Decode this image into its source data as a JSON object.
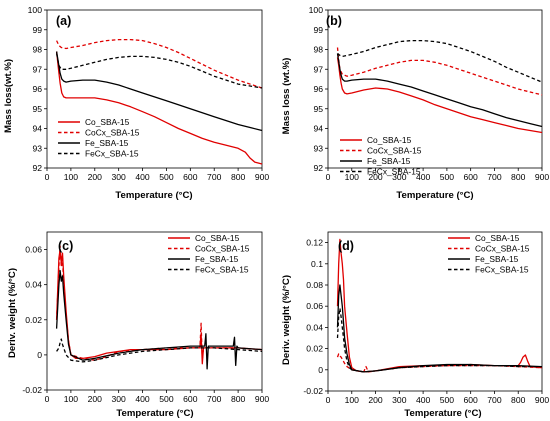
{
  "chart_data": [
    {
      "panel": "(a)",
      "type": "line",
      "xlabel": "Temperature (°C)",
      "ylabel": "Mass loss(wt.%)",
      "xlim": [
        0,
        900
      ],
      "ylim": [
        92,
        100
      ],
      "xticks": [
        0,
        100,
        200,
        300,
        400,
        500,
        600,
        700,
        800,
        900
      ],
      "yticks": [
        92,
        93,
        94,
        95,
        96,
        97,
        98,
        99,
        100
      ],
      "legend": "middle-left",
      "series": [
        {
          "name": "Co_SBA-15",
          "color": "#e00000",
          "dash": "solid",
          "x": [
            40,
            48,
            55,
            62,
            70,
            80,
            100,
            150,
            200,
            250,
            300,
            350,
            400,
            450,
            500,
            550,
            600,
            650,
            700,
            750,
            800,
            830,
            850,
            870,
            900
          ],
          "y": [
            97.9,
            97.0,
            96.3,
            95.8,
            95.6,
            95.55,
            95.55,
            95.55,
            95.55,
            95.45,
            95.3,
            95.1,
            94.85,
            94.6,
            94.3,
            94.0,
            93.75,
            93.5,
            93.3,
            93.15,
            93.0,
            92.8,
            92.5,
            92.3,
            92.2
          ]
        },
        {
          "name": "CoCx_SBA-15",
          "color": "#e00000",
          "dash": "dashed",
          "x": [
            40,
            50,
            60,
            80,
            100,
            150,
            200,
            250,
            300,
            350,
            400,
            450,
            500,
            550,
            600,
            650,
            700,
            750,
            800,
            850,
            900
          ],
          "y": [
            98.45,
            98.2,
            98.1,
            98.05,
            98.1,
            98.2,
            98.35,
            98.45,
            98.5,
            98.5,
            98.45,
            98.3,
            98.1,
            97.85,
            97.55,
            97.25,
            96.95,
            96.7,
            96.45,
            96.25,
            96.05
          ]
        },
        {
          "name": "Fe_SBA-15",
          "color": "#000000",
          "dash": "solid",
          "x": [
            40,
            48,
            55,
            62,
            70,
            80,
            100,
            150,
            200,
            250,
            300,
            350,
            400,
            450,
            500,
            550,
            600,
            650,
            700,
            750,
            800,
            850,
            900
          ],
          "y": [
            97.9,
            97.3,
            96.8,
            96.5,
            96.4,
            96.35,
            96.4,
            96.45,
            96.45,
            96.35,
            96.2,
            96.0,
            95.8,
            95.6,
            95.4,
            95.2,
            95.0,
            94.8,
            94.6,
            94.4,
            94.2,
            94.05,
            93.9
          ]
        },
        {
          "name": "FeCx_SBA-15",
          "color": "#000000",
          "dash": "dashed",
          "x": [
            40,
            50,
            60,
            80,
            100,
            150,
            200,
            250,
            300,
            350,
            400,
            450,
            500,
            550,
            600,
            650,
            700,
            750,
            800,
            850,
            900
          ],
          "y": [
            97.8,
            97.2,
            97.0,
            97.0,
            97.05,
            97.2,
            97.35,
            97.5,
            97.6,
            97.65,
            97.65,
            97.6,
            97.5,
            97.35,
            97.15,
            96.9,
            96.65,
            96.45,
            96.25,
            96.15,
            96.05
          ]
        }
      ]
    },
    {
      "panel": "(b)",
      "type": "line",
      "xlabel": "Temperature (°C)",
      "ylabel": "Mass loss (wt.%)",
      "xlim": [
        0,
        900
      ],
      "ylim": [
        92,
        100
      ],
      "xticks": [
        0,
        100,
        200,
        300,
        400,
        500,
        600,
        700,
        800,
        900
      ],
      "yticks": [
        92,
        93,
        94,
        95,
        96,
        97,
        98,
        99,
        100
      ],
      "legend": "middle-left",
      "series": [
        {
          "name": "Co_SBA-15",
          "color": "#e00000",
          "dash": "solid",
          "x": [
            40,
            45,
            50,
            55,
            60,
            70,
            80,
            100,
            150,
            200,
            250,
            300,
            350,
            400,
            450,
            500,
            550,
            600,
            650,
            700,
            750,
            800,
            850,
            900
          ],
          "y": [
            97.6,
            97.2,
            96.7,
            96.3,
            96.0,
            95.8,
            95.75,
            95.8,
            95.95,
            96.05,
            96.0,
            95.85,
            95.65,
            95.45,
            95.2,
            95.0,
            94.8,
            94.6,
            94.45,
            94.3,
            94.15,
            94.0,
            93.9,
            93.8
          ]
        },
        {
          "name": "CoCx_SBA-15",
          "color": "#e00000",
          "dash": "dashed",
          "x": [
            40,
            45,
            50,
            60,
            80,
            100,
            150,
            200,
            250,
            300,
            350,
            400,
            450,
            500,
            550,
            600,
            650,
            700,
            750,
            800,
            850,
            900
          ],
          "y": [
            98.1,
            97.5,
            97.0,
            96.75,
            96.65,
            96.7,
            96.85,
            97.05,
            97.2,
            97.35,
            97.45,
            97.45,
            97.35,
            97.2,
            97.0,
            96.8,
            96.6,
            96.4,
            96.2,
            96.0,
            95.85,
            95.7
          ]
        },
        {
          "name": "Fe_SBA-15",
          "color": "#000000",
          "dash": "solid",
          "x": [
            40,
            45,
            50,
            55,
            60,
            70,
            80,
            100,
            150,
            200,
            250,
            300,
            350,
            400,
            450,
            500,
            550,
            600,
            650,
            700,
            750,
            800,
            850,
            900
          ],
          "y": [
            97.8,
            97.4,
            97.0,
            96.7,
            96.5,
            96.4,
            96.4,
            96.45,
            96.5,
            96.5,
            96.4,
            96.25,
            96.1,
            95.9,
            95.7,
            95.5,
            95.3,
            95.1,
            94.95,
            94.75,
            94.55,
            94.4,
            94.25,
            94.1
          ]
        },
        {
          "name": "FeCx_SBA-15",
          "color": "#000000",
          "dash": "dashed",
          "x": [
            40,
            50,
            60,
            80,
            100,
            150,
            200,
            250,
            300,
            350,
            400,
            450,
            500,
            550,
            600,
            650,
            700,
            750,
            800,
            850,
            900
          ],
          "y": [
            97.8,
            97.7,
            97.65,
            97.7,
            97.75,
            97.9,
            98.1,
            98.25,
            98.4,
            98.45,
            98.45,
            98.4,
            98.3,
            98.1,
            97.9,
            97.65,
            97.4,
            97.1,
            96.85,
            96.6,
            96.35
          ]
        }
      ]
    },
    {
      "panel": "(c)",
      "type": "line",
      "xlabel": "Temperature (°C)",
      "ylabel": "Deriv. weight (%/°C)",
      "xlim": [
        0,
        900
      ],
      "ylim": [
        -0.02,
        0.07
      ],
      "xticks": [
        0,
        100,
        200,
        300,
        400,
        500,
        600,
        700,
        800,
        900
      ],
      "yticks": [
        -0.02,
        0,
        0.02,
        0.04,
        0.06
      ],
      "legend": "top-right",
      "series": [
        {
          "name": "Co_SBA-15",
          "color": "#e00000",
          "dash": "solid",
          "x": [
            40,
            50,
            55,
            60,
            65,
            70,
            80,
            90,
            100,
            120,
            150,
            200,
            250,
            300,
            350,
            400,
            500,
            600,
            640,
            645,
            650,
            655,
            700,
            800,
            900
          ],
          "y": [
            0.02,
            0.055,
            0.06,
            0.052,
            0.058,
            0.045,
            0.025,
            0.008,
            0.0,
            -0.002,
            -0.002,
            -0.001,
            0.001,
            0.002,
            0.003,
            0.003,
            0.003,
            0.004,
            0.004,
            0.012,
            -0.005,
            0.004,
            0.004,
            0.004,
            0.003
          ]
        },
        {
          "name": "CoCx_SBA-15",
          "color": "#e00000",
          "dash": "dashed",
          "x": [
            40,
            50,
            55,
            60,
            65,
            70,
            80,
            90,
            100,
            150,
            200,
            250,
            300,
            400,
            500,
            600,
            640,
            645,
            650,
            655,
            700,
            800,
            900
          ],
          "y": [
            0.02,
            0.05,
            0.062,
            0.05,
            0.055,
            0.04,
            0.022,
            0.008,
            0.0,
            -0.002,
            -0.003,
            -0.001,
            0.002,
            0.003,
            0.004,
            0.004,
            0.004,
            0.018,
            -0.003,
            0.004,
            0.004,
            0.004,
            0.003
          ]
        },
        {
          "name": "Fe_SBA-15",
          "color": "#000000",
          "dash": "solid",
          "x": [
            40,
            50,
            55,
            60,
            65,
            70,
            80,
            90,
            100,
            150,
            200,
            300,
            400,
            500,
            600,
            660,
            665,
            670,
            675,
            700,
            780,
            785,
            790,
            795,
            800,
            900
          ],
          "y": [
            0.015,
            0.04,
            0.048,
            0.042,
            0.045,
            0.035,
            0.02,
            0.006,
            0.0,
            -0.003,
            -0.002,
            0.001,
            0.003,
            0.004,
            0.005,
            0.005,
            0.012,
            -0.008,
            0.005,
            0.005,
            0.005,
            0.01,
            -0.006,
            0.005,
            0.004,
            0.003
          ]
        },
        {
          "name": "FeCx_SBA-15",
          "color": "#000000",
          "dash": "dashed",
          "x": [
            40,
            50,
            55,
            60,
            65,
            70,
            80,
            100,
            150,
            200,
            300,
            400,
            500,
            600,
            700,
            800,
            900
          ],
          "y": [
            0.002,
            0.004,
            0.007,
            0.009,
            0.006,
            0.004,
            0.0,
            -0.003,
            -0.004,
            -0.003,
            0.0,
            0.002,
            0.003,
            0.004,
            0.004,
            0.003,
            0.002
          ]
        }
      ]
    },
    {
      "panel": "(d)",
      "type": "line",
      "xlabel": "Temperature (°C)",
      "ylabel": "Deriv. weight (%/°C)",
      "xlim": [
        0,
        900
      ],
      "ylim": [
        -0.02,
        0.13
      ],
      "xticks": [
        0,
        100,
        200,
        300,
        400,
        500,
        600,
        700,
        800,
        900
      ],
      "yticks": [
        -0.02,
        0,
        0.02,
        0.04,
        0.06,
        0.08,
        0.1,
        0.12
      ],
      "legend": "top-right",
      "series": [
        {
          "name": "Co_SBA-15",
          "color": "#e00000",
          "dash": "solid",
          "x": [
            40,
            45,
            50,
            55,
            60,
            65,
            70,
            80,
            90,
            100,
            120,
            150,
            200,
            300,
            400,
            500,
            600,
            700,
            800,
            810,
            820,
            830,
            840,
            850,
            900
          ],
          "y": [
            0.06,
            0.1,
            0.123,
            0.11,
            0.1,
            0.085,
            0.06,
            0.035,
            0.012,
            0.002,
            -0.001,
            -0.002,
            -0.001,
            0.003,
            0.004,
            0.004,
            0.005,
            0.004,
            0.004,
            0.007,
            0.012,
            0.014,
            0.008,
            0.003,
            0.002
          ]
        },
        {
          "name": "CoCx_SBA-15",
          "color": "#e00000",
          "dash": "dashed",
          "x": [
            40,
            45,
            50,
            55,
            60,
            70,
            80,
            100,
            150,
            160,
            170,
            200,
            300,
            400,
            500,
            600,
            700,
            800,
            900
          ],
          "y": [
            0.012,
            0.015,
            0.013,
            0.012,
            0.01,
            0.006,
            0.003,
            0.0,
            -0.002,
            0.003,
            -0.002,
            -0.001,
            0.002,
            0.003,
            0.004,
            0.004,
            0.004,
            0.003,
            0.002
          ]
        },
        {
          "name": "Fe_SBA-15",
          "color": "#000000",
          "dash": "solid",
          "x": [
            40,
            45,
            50,
            55,
            60,
            65,
            70,
            80,
            90,
            100,
            150,
            200,
            300,
            400,
            500,
            600,
            700,
            800,
            900
          ],
          "y": [
            0.04,
            0.07,
            0.08,
            0.07,
            0.06,
            0.045,
            0.03,
            0.015,
            0.005,
            0.0,
            -0.002,
            -0.001,
            0.002,
            0.004,
            0.005,
            0.005,
            0.004,
            0.004,
            0.003
          ]
        },
        {
          "name": "FeCx_SBA-15",
          "color": "#000000",
          "dash": "dashed",
          "x": [
            40,
            45,
            50,
            55,
            60,
            65,
            70,
            80,
            90,
            100,
            150,
            200,
            300,
            400,
            500,
            600,
            700,
            800,
            900
          ],
          "y": [
            0.03,
            0.05,
            0.058,
            0.05,
            0.04,
            0.03,
            0.02,
            0.008,
            0.002,
            0.0,
            -0.002,
            -0.001,
            0.002,
            0.003,
            0.004,
            0.004,
            0.004,
            0.003,
            0.003
          ]
        }
      ]
    }
  ]
}
